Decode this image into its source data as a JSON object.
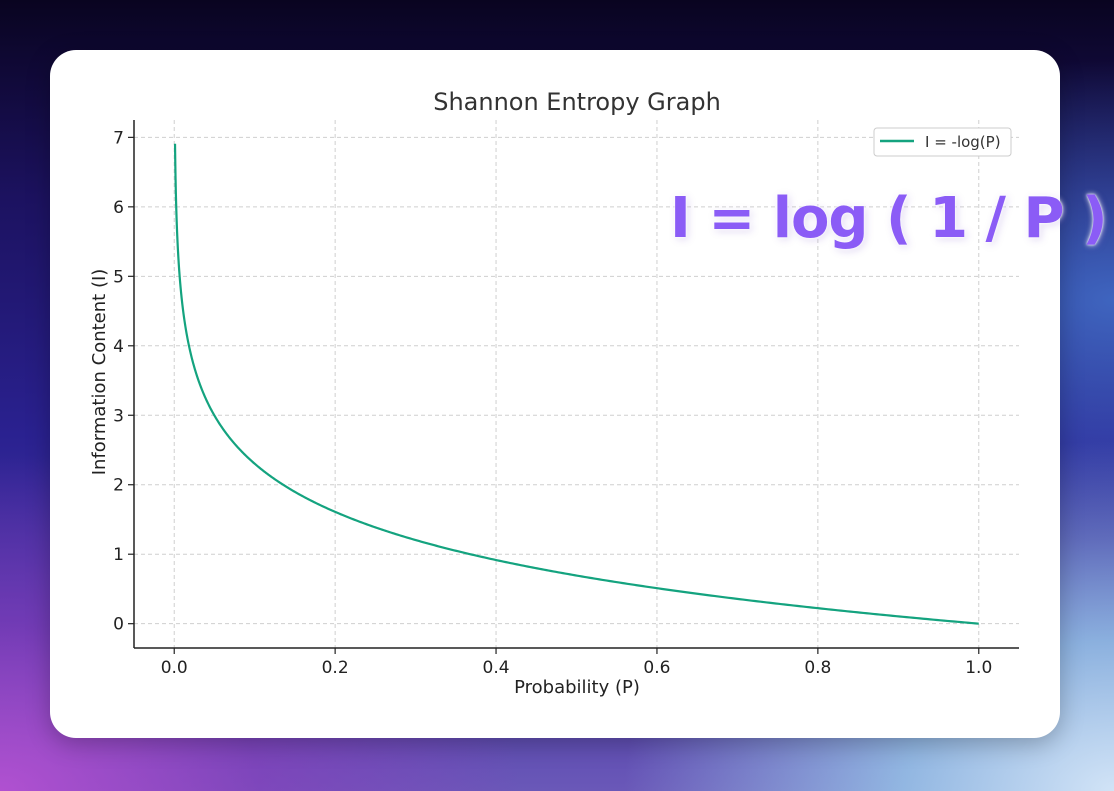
{
  "chart_data": {
    "type": "line",
    "title": "Shannon Entropy Graph",
    "xlabel": "Probability (P)",
    "ylabel": "Information Content (I)",
    "xlim": [
      -0.05,
      1.05
    ],
    "ylim": [
      -0.35,
      7.25
    ],
    "xticks": [
      0.0,
      0.2,
      0.4,
      0.6,
      0.8,
      1.0
    ],
    "xtick_labels": [
      "0.0",
      "0.2",
      "0.4",
      "0.6",
      "0.8",
      "1.0"
    ],
    "yticks": [
      0,
      1,
      2,
      3,
      4,
      5,
      6,
      7
    ],
    "ytick_labels": [
      "0",
      "1",
      "2",
      "3",
      "4",
      "5",
      "6",
      "7"
    ],
    "grid": true,
    "grid_style": "dashed",
    "legend_position": "top-right",
    "series": [
      {
        "name": "I = -log(P)",
        "color": "#14a37f",
        "function": "-ln(x)",
        "x_range": [
          0.001,
          1.0
        ],
        "sample_points": [
          {
            "x": 0.001,
            "y": 6.91
          },
          {
            "x": 0.01,
            "y": 4.61
          },
          {
            "x": 0.05,
            "y": 3.0
          },
          {
            "x": 0.1,
            "y": 2.3
          },
          {
            "x": 0.2,
            "y": 1.61
          },
          {
            "x": 0.4,
            "y": 0.92
          },
          {
            "x": 0.6,
            "y": 0.51
          },
          {
            "x": 0.8,
            "y": 0.22
          },
          {
            "x": 1.0,
            "y": 0.0
          }
        ]
      }
    ],
    "annotation": "I = log ( 1 / P )",
    "annotation_color": "#8b5cf6"
  }
}
